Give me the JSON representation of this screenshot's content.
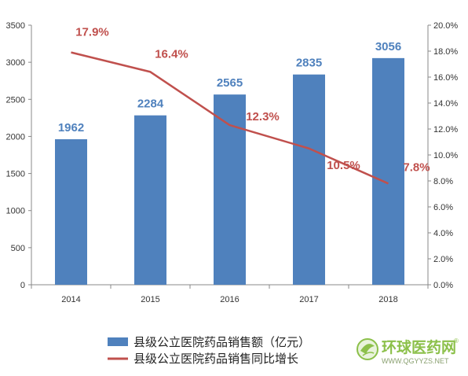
{
  "chart_data": {
    "type": "bar+line",
    "categories": [
      "2014",
      "2015",
      "2016",
      "2017",
      "2018"
    ],
    "series": [
      {
        "name": "县级公立医院药品销售额（亿元）",
        "type": "bar",
        "axis": "left",
        "values": [
          1962,
          2284,
          2565,
          2835,
          3056
        ],
        "labels": [
          "1962",
          "2284",
          "2565",
          "2835",
          "3056"
        ],
        "color": "#4f81bd",
        "label_color": "#4f81bd"
      },
      {
        "name": "县级公立医院药品销售同比增长",
        "type": "line",
        "axis": "right",
        "values": [
          17.9,
          16.4,
          12.3,
          10.5,
          7.8
        ],
        "labels": [
          "17.9%",
          "16.4%",
          "12.3%",
          "10.5%",
          "7.8%"
        ],
        "color": "#c0504d",
        "label_color": "#c0504d"
      }
    ],
    "y_left": {
      "min": 0,
      "max": 3500,
      "ticks": [
        "0",
        "500",
        "1000",
        "1500",
        "2000",
        "2500",
        "3000",
        "3500"
      ]
    },
    "y_right": {
      "min": 0,
      "max": 20,
      "ticks": [
        "0.0%",
        "2.0%",
        "4.0%",
        "6.0%",
        "8.0%",
        "10.0%",
        "12.0%",
        "14.0%",
        "16.0%",
        "18.0%",
        "20.0%"
      ]
    },
    "grid": false,
    "legend_position": "bottom-left"
  },
  "watermark": {
    "text": "环球医药网",
    "url": "WWW.QGYYZS.NET",
    "mark": "®"
  }
}
